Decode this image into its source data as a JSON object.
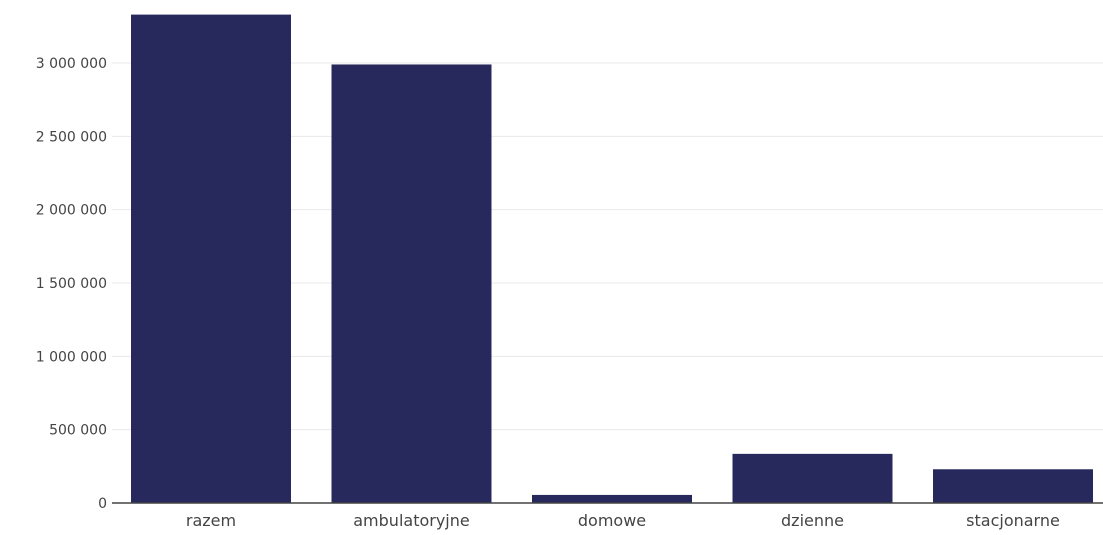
{
  "chart_data": {
    "type": "bar",
    "title": "",
    "xlabel": "",
    "ylabel": "",
    "categories": [
      "razem",
      "ambulatoryjne",
      "domowe",
      "dzienne",
      "stacjonarne"
    ],
    "values": [
      3330000,
      2990000,
      55000,
      335000,
      230000
    ],
    "ylim": [
      0,
      3400000
    ],
    "yticks": [
      0,
      500000,
      1000000,
      1500000,
      2000000,
      2500000,
      3000000
    ],
    "ytick_labels": [
      "0",
      "500 000",
      "1 000 000",
      "1 500 000",
      "2 000 000",
      "2 500 000",
      "3 000 000"
    ],
    "grid": true,
    "legend": "none",
    "bar_color": "#27295c",
    "grid_color": "#e8e8ec",
    "axis_color": "#444444"
  }
}
